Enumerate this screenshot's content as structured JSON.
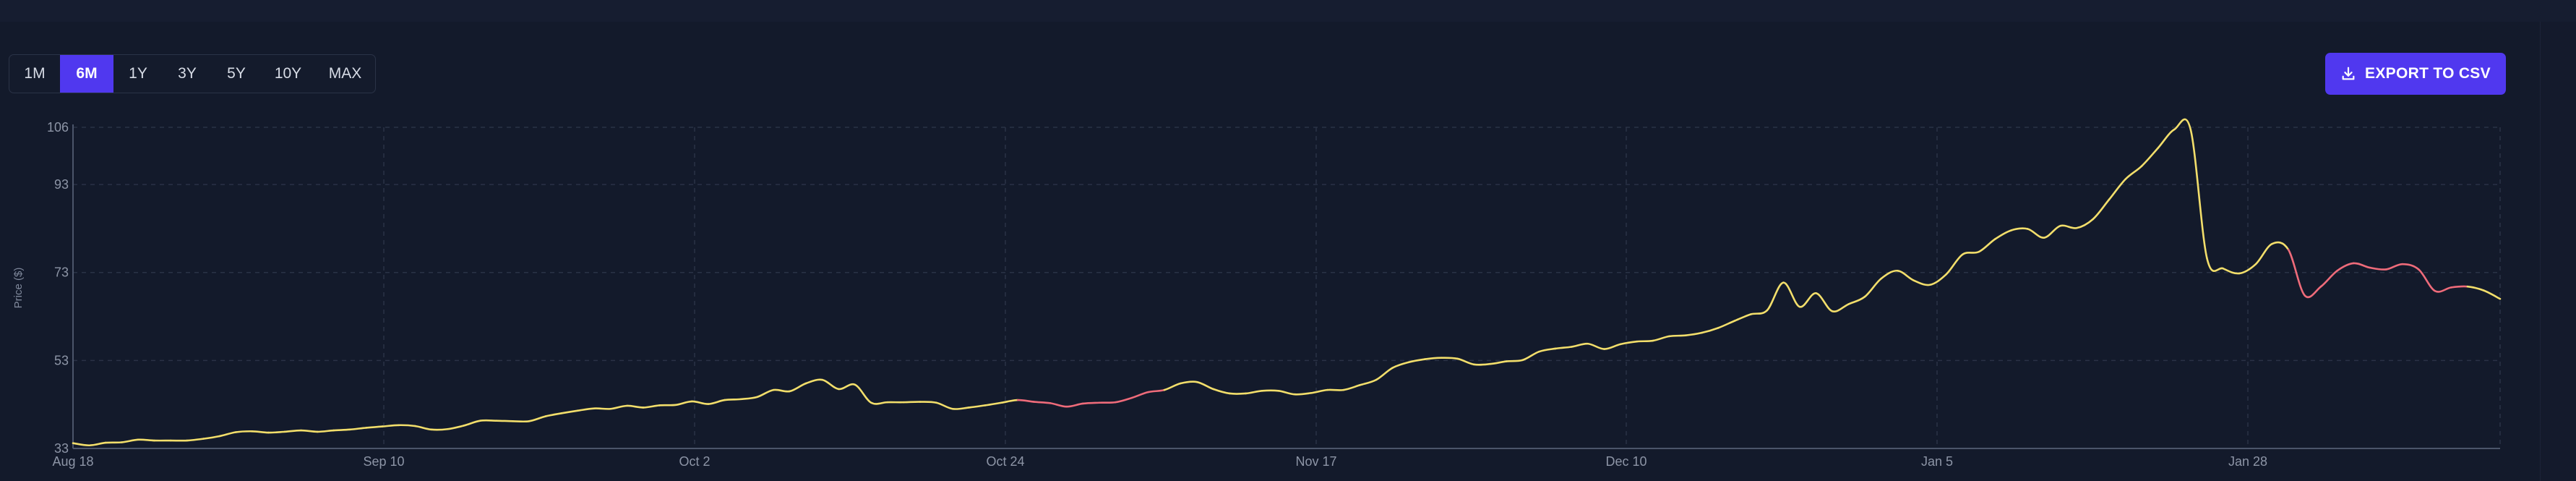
{
  "toolbar": {
    "ranges": [
      {
        "label": "1M",
        "active": false
      },
      {
        "label": "6M",
        "active": true
      },
      {
        "label": "1Y",
        "active": false
      },
      {
        "label": "3Y",
        "active": false
      },
      {
        "label": "5Y",
        "active": false
      },
      {
        "label": "10Y",
        "active": false
      },
      {
        "label": "MAX",
        "active": false
      }
    ],
    "export_label": "EXPORT TO CSV",
    "export_icon": "download-icon"
  },
  "colors": {
    "accent": "#5038ef",
    "up": "#f2de6b",
    "down": "#ee6b7a",
    "grid": "#2a3246"
  },
  "chart_data": {
    "type": "line",
    "title": "",
    "xlabel": "",
    "ylabel": "Price ($)",
    "ylim": [
      33,
      106
    ],
    "yticks": [
      106,
      93,
      73,
      53,
      33
    ],
    "xticks": [
      "Aug 18",
      "Sep 10",
      "Oct 2",
      "Oct 24",
      "Nov 17",
      "Dec 10",
      "Jan 5",
      "Jan 28"
    ],
    "grid": true,
    "legend": "none",
    "series": [
      {
        "values": [
          34.2,
          33.7,
          34.3,
          34.4,
          35.0,
          34.8,
          34.8,
          34.8,
          35.2,
          35.8,
          36.7,
          36.9,
          36.6,
          36.8,
          37.1,
          36.8,
          37.1,
          37.3,
          37.7,
          38.0,
          38.3,
          38.1,
          37.3,
          37.4,
          38.2,
          39.3,
          39.3,
          39.2,
          39.2,
          40.3,
          41.0,
          41.6,
          42.1,
          42.0,
          42.7,
          42.3,
          42.8,
          42.9,
          43.7,
          43.1,
          44.0,
          44.2,
          44.7,
          46.3,
          46.0,
          47.8,
          48.6,
          46.5,
          47.5,
          43.4,
          43.5,
          43.5,
          43.6,
          43.4,
          42.0,
          42.3,
          42.8,
          43.4,
          44.0,
          43.6,
          43.3,
          42.5,
          43.2,
          43.4,
          43.5,
          44.5,
          45.8,
          46.3,
          47.8,
          48.1,
          46.5,
          45.5,
          45.5,
          46.1,
          46.1,
          45.3,
          45.6,
          46.3,
          46.3,
          47.4,
          48.6,
          51.3,
          52.6,
          53.3,
          53.6,
          53.4,
          52.1,
          52.2,
          52.8,
          53.1,
          55.0,
          55.7,
          56.1,
          56.8,
          55.6,
          56.7,
          57.3,
          57.5,
          58.5,
          58.7,
          59.3,
          60.4,
          62.0,
          63.5,
          64.4,
          70.7,
          65.2,
          68.3,
          64.2,
          65.8,
          67.5,
          71.6,
          73.4,
          71.2,
          70.2,
          72.6,
          77.1,
          77.7,
          80.6,
          82.6,
          82.9,
          80.9,
          83.6,
          83.1,
          85.1,
          89.6,
          94.2,
          97.2,
          101.3,
          105.5,
          105.5,
          76.3,
          73.9,
          72.8,
          74.9,
          79.5,
          78.2,
          67.8,
          69.8,
          73.4,
          75.1,
          74.1,
          73.7,
          74.9,
          73.7,
          68.8,
          69.6,
          69.8,
          68.9,
          67.0
        ]
      }
    ]
  }
}
